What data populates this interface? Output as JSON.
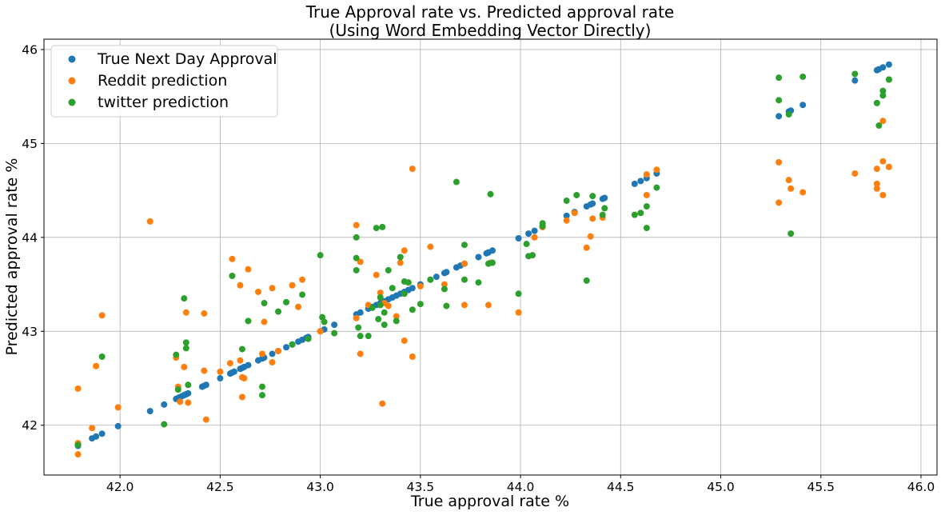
{
  "chart_data": {
    "type": "scatter",
    "title": "True Approval rate vs. Predicted approval rate",
    "subtitle": "(Using Word Embedding Vector Directly)",
    "xlabel": "True approval rate %",
    "ylabel": "Predicted approval rate %",
    "xlim": [
      41.62,
      46.08
    ],
    "ylim": [
      41.47,
      46.11
    ],
    "xticks": [
      "42.0",
      "42.5",
      "43.0",
      "43.5",
      "44.0",
      "44.5",
      "45.0",
      "45.5",
      "46.0"
    ],
    "yticks": [
      "42",
      "43",
      "44",
      "45",
      "46"
    ],
    "grid": true,
    "legend_position": "top-left",
    "series": [
      {
        "name": "True Next Day Approval",
        "color": "#1f77b4",
        "points": [
          [
            41.79,
            41.78
          ],
          [
            41.79,
            41.79
          ],
          [
            41.86,
            41.86
          ],
          [
            41.88,
            41.88
          ],
          [
            41.91,
            41.91
          ],
          [
            41.99,
            41.99
          ],
          [
            42.15,
            42.15
          ],
          [
            42.22,
            42.22
          ],
          [
            42.28,
            42.28
          ],
          [
            42.29,
            42.29
          ],
          [
            42.3,
            42.3
          ],
          [
            42.31,
            42.31
          ],
          [
            42.32,
            42.32
          ],
          [
            42.33,
            42.33
          ],
          [
            42.34,
            42.34
          ],
          [
            42.41,
            42.41
          ],
          [
            42.42,
            42.42
          ],
          [
            42.43,
            42.43
          ],
          [
            42.5,
            42.5
          ],
          [
            42.55,
            42.55
          ],
          [
            42.56,
            42.56
          ],
          [
            42.57,
            42.57
          ],
          [
            42.6,
            42.6
          ],
          [
            42.61,
            42.61
          ],
          [
            42.62,
            42.62
          ],
          [
            42.64,
            42.64
          ],
          [
            42.69,
            42.69
          ],
          [
            42.71,
            42.71
          ],
          [
            42.72,
            42.72
          ],
          [
            42.76,
            42.76
          ],
          [
            42.79,
            42.79
          ],
          [
            42.83,
            42.83
          ],
          [
            42.86,
            42.86
          ],
          [
            42.89,
            42.89
          ],
          [
            42.91,
            42.91
          ],
          [
            42.93,
            42.93
          ],
          [
            42.94,
            42.94
          ],
          [
            43.0,
            43.0
          ],
          [
            43.02,
            43.02
          ],
          [
            43.07,
            43.07
          ],
          [
            43.18,
            43.18
          ],
          [
            43.2,
            43.2
          ],
          [
            43.24,
            43.24
          ],
          [
            43.26,
            43.26
          ],
          [
            43.28,
            43.28
          ],
          [
            43.3,
            43.3
          ],
          [
            43.32,
            43.32
          ],
          [
            43.34,
            43.34
          ],
          [
            43.36,
            43.36
          ],
          [
            43.38,
            43.38
          ],
          [
            43.4,
            43.4
          ],
          [
            43.42,
            43.42
          ],
          [
            43.44,
            43.44
          ],
          [
            43.46,
            43.46
          ],
          [
            43.5,
            43.5
          ],
          [
            43.55,
            43.55
          ],
          [
            43.58,
            43.58
          ],
          [
            43.62,
            43.62
          ],
          [
            43.63,
            43.63
          ],
          [
            43.68,
            43.68
          ],
          [
            43.7,
            43.7
          ],
          [
            43.72,
            43.72
          ],
          [
            43.79,
            43.79
          ],
          [
            43.83,
            43.83
          ],
          [
            43.84,
            43.84
          ],
          [
            43.86,
            43.86
          ],
          [
            43.99,
            43.99
          ],
          [
            44.04,
            44.04
          ],
          [
            44.07,
            44.07
          ],
          [
            44.11,
            44.11
          ],
          [
            44.23,
            44.23
          ],
          [
            44.27,
            44.27
          ],
          [
            44.33,
            44.33
          ],
          [
            44.35,
            44.35
          ],
          [
            44.36,
            44.36
          ],
          [
            44.41,
            44.41
          ],
          [
            44.42,
            44.42
          ],
          [
            44.57,
            44.57
          ],
          [
            44.6,
            44.6
          ],
          [
            44.63,
            44.63
          ],
          [
            44.68,
            44.68
          ],
          [
            45.29,
            45.29
          ],
          [
            45.34,
            45.34
          ],
          [
            45.35,
            45.35
          ],
          [
            45.41,
            45.41
          ],
          [
            45.67,
            45.67
          ],
          [
            45.78,
            45.78
          ],
          [
            45.79,
            45.79
          ],
          [
            45.81,
            45.81
          ],
          [
            45.84,
            45.84
          ]
        ]
      },
      {
        "name": "Reddit prediction",
        "color": "#ff7f0e",
        "points": [
          [
            41.79,
            42.39
          ],
          [
            41.79,
            41.81
          ],
          [
            41.79,
            41.69
          ],
          [
            41.86,
            41.97
          ],
          [
            41.88,
            42.63
          ],
          [
            41.91,
            43.17
          ],
          [
            41.99,
            42.19
          ],
          [
            42.15,
            44.17
          ],
          [
            42.28,
            42.72
          ],
          [
            42.29,
            42.41
          ],
          [
            42.3,
            42.25
          ],
          [
            42.32,
            42.62
          ],
          [
            42.33,
            43.2
          ],
          [
            42.34,
            42.24
          ],
          [
            42.42,
            43.19
          ],
          [
            42.42,
            42.58
          ],
          [
            42.43,
            42.06
          ],
          [
            42.5,
            42.57
          ],
          [
            42.55,
            42.66
          ],
          [
            42.56,
            43.77
          ],
          [
            42.6,
            42.69
          ],
          [
            42.6,
            43.49
          ],
          [
            42.61,
            42.51
          ],
          [
            42.61,
            42.3
          ],
          [
            42.62,
            42.5
          ],
          [
            42.64,
            43.66
          ],
          [
            42.69,
            43.42
          ],
          [
            42.71,
            42.76
          ],
          [
            42.72,
            43.1
          ],
          [
            42.76,
            43.46
          ],
          [
            42.76,
            42.67
          ],
          [
            42.79,
            42.79
          ],
          [
            42.86,
            43.49
          ],
          [
            42.89,
            43.26
          ],
          [
            42.91,
            43.55
          ],
          [
            43.0,
            43.0
          ],
          [
            43.18,
            44.13
          ],
          [
            43.18,
            43.14
          ],
          [
            43.2,
            43.74
          ],
          [
            43.2,
            42.76
          ],
          [
            43.24,
            43.28
          ],
          [
            43.28,
            43.6
          ],
          [
            43.3,
            43.41
          ],
          [
            43.31,
            42.23
          ],
          [
            43.32,
            43.3
          ],
          [
            43.34,
            43.27
          ],
          [
            43.38,
            43.16
          ],
          [
            43.4,
            43.73
          ],
          [
            43.42,
            43.86
          ],
          [
            43.42,
            42.9
          ],
          [
            43.44,
            43.52
          ],
          [
            43.46,
            42.73
          ],
          [
            43.46,
            44.73
          ],
          [
            43.5,
            43.48
          ],
          [
            43.55,
            43.9
          ],
          [
            43.62,
            43.5
          ],
          [
            43.72,
            43.28
          ],
          [
            43.72,
            43.72
          ],
          [
            43.84,
            43.28
          ],
          [
            43.85,
            43.73
          ],
          [
            43.99,
            43.2
          ],
          [
            44.07,
            44.0
          ],
          [
            44.11,
            44.11
          ],
          [
            44.23,
            44.18
          ],
          [
            44.27,
            44.26
          ],
          [
            44.33,
            43.89
          ],
          [
            44.35,
            44.01
          ],
          [
            44.36,
            44.2
          ],
          [
            44.41,
            44.21
          ],
          [
            44.63,
            44.45
          ],
          [
            44.63,
            44.67
          ],
          [
            44.68,
            44.72
          ],
          [
            45.29,
            44.8
          ],
          [
            45.29,
            44.37
          ],
          [
            45.34,
            44.61
          ],
          [
            45.35,
            44.52
          ],
          [
            45.41,
            44.48
          ],
          [
            45.67,
            44.68
          ],
          [
            45.78,
            44.73
          ],
          [
            45.78,
            44.57
          ],
          [
            45.78,
            44.52
          ],
          [
            45.81,
            44.81
          ],
          [
            45.81,
            44.45
          ],
          [
            45.81,
            45.24
          ],
          [
            45.84,
            44.75
          ]
        ]
      },
      {
        "name": "twitter prediction",
        "color": "#2ca02c",
        "points": [
          [
            41.79,
            41.79
          ],
          [
            41.91,
            42.73
          ],
          [
            42.22,
            42.01
          ],
          [
            42.28,
            42.75
          ],
          [
            42.29,
            42.38
          ],
          [
            42.32,
            43.35
          ],
          [
            42.33,
            42.88
          ],
          [
            42.33,
            42.82
          ],
          [
            42.34,
            42.43
          ],
          [
            42.56,
            43.59
          ],
          [
            42.61,
            42.81
          ],
          [
            42.64,
            43.11
          ],
          [
            42.71,
            42.41
          ],
          [
            42.71,
            42.32
          ],
          [
            42.72,
            43.3
          ],
          [
            42.79,
            43.21
          ],
          [
            42.83,
            43.31
          ],
          [
            42.86,
            42.86
          ],
          [
            42.91,
            43.39
          ],
          [
            42.94,
            42.92
          ],
          [
            43.0,
            43.81
          ],
          [
            43.01,
            43.15
          ],
          [
            43.02,
            43.1
          ],
          [
            43.07,
            42.98
          ],
          [
            43.18,
            44.0
          ],
          [
            43.18,
            43.78
          ],
          [
            43.18,
            43.65
          ],
          [
            43.19,
            43.04
          ],
          [
            43.2,
            42.95
          ],
          [
            43.24,
            42.95
          ],
          [
            43.26,
            43.25
          ],
          [
            43.28,
            44.1
          ],
          [
            43.29,
            43.13
          ],
          [
            43.3,
            43.36
          ],
          [
            43.3,
            43.28
          ],
          [
            43.31,
            44.11
          ],
          [
            43.32,
            43.2
          ],
          [
            43.32,
            43.07
          ],
          [
            43.34,
            43.65
          ],
          [
            43.36,
            43.46
          ],
          [
            43.38,
            43.11
          ],
          [
            43.4,
            43.79
          ],
          [
            43.42,
            43.53
          ],
          [
            43.42,
            43.4
          ],
          [
            43.44,
            43.52
          ],
          [
            43.46,
            43.23
          ],
          [
            43.5,
            43.29
          ],
          [
            43.55,
            43.55
          ],
          [
            43.62,
            43.45
          ],
          [
            43.63,
            43.27
          ],
          [
            43.68,
            44.59
          ],
          [
            43.72,
            43.92
          ],
          [
            43.72,
            43.55
          ],
          [
            43.79,
            43.52
          ],
          [
            43.84,
            43.72
          ],
          [
            43.85,
            44.46
          ],
          [
            43.86,
            43.73
          ],
          [
            43.99,
            43.4
          ],
          [
            44.03,
            43.93
          ],
          [
            44.04,
            43.8
          ],
          [
            44.06,
            43.81
          ],
          [
            44.11,
            44.15
          ],
          [
            44.11,
            44.12
          ],
          [
            44.23,
            44.39
          ],
          [
            44.28,
            44.45
          ],
          [
            44.33,
            43.54
          ],
          [
            44.36,
            44.44
          ],
          [
            44.41,
            44.24
          ],
          [
            44.42,
            44.31
          ],
          [
            44.57,
            44.24
          ],
          [
            44.6,
            44.26
          ],
          [
            44.63,
            44.33
          ],
          [
            44.63,
            44.1
          ],
          [
            44.68,
            44.53
          ],
          [
            45.29,
            45.7
          ],
          [
            45.29,
            45.46
          ],
          [
            45.34,
            45.31
          ],
          [
            45.35,
            44.04
          ],
          [
            45.41,
            45.71
          ],
          [
            45.67,
            45.74
          ],
          [
            45.78,
            45.43
          ],
          [
            45.79,
            45.19
          ],
          [
            45.81,
            45.51
          ],
          [
            45.81,
            45.56
          ],
          [
            45.84,
            45.68
          ],
          [
            45.84,
            45.68
          ]
        ]
      }
    ]
  }
}
